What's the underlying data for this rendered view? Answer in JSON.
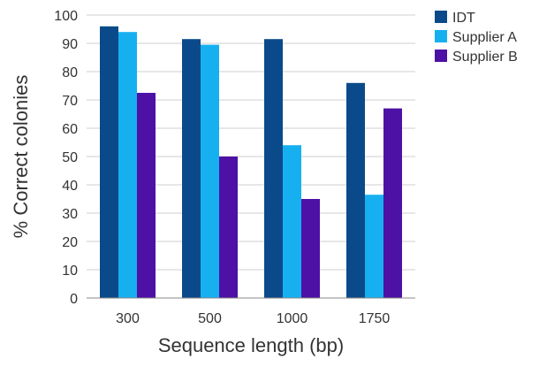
{
  "chart_data": {
    "type": "bar",
    "title": "",
    "xlabel": "Sequence length (bp)",
    "ylabel": "% Correct colonies",
    "categories": [
      "300",
      "500",
      "1000",
      "1750"
    ],
    "ylim": [
      0,
      100
    ],
    "yticks": [
      0,
      10,
      20,
      30,
      40,
      50,
      60,
      70,
      80,
      90,
      100
    ],
    "grid": true,
    "legend_position": "top-right",
    "series": [
      {
        "name": "IDT",
        "color": "#0b4a8a",
        "values": [
          96,
          91.5,
          91.5,
          76
        ]
      },
      {
        "name": "Supplier A",
        "color": "#16b0f0",
        "values": [
          94,
          89.5,
          54,
          36.5
        ]
      },
      {
        "name": "Supplier B",
        "color": "#4d11a5",
        "values": [
          72.5,
          50,
          35,
          67
        ]
      }
    ]
  }
}
